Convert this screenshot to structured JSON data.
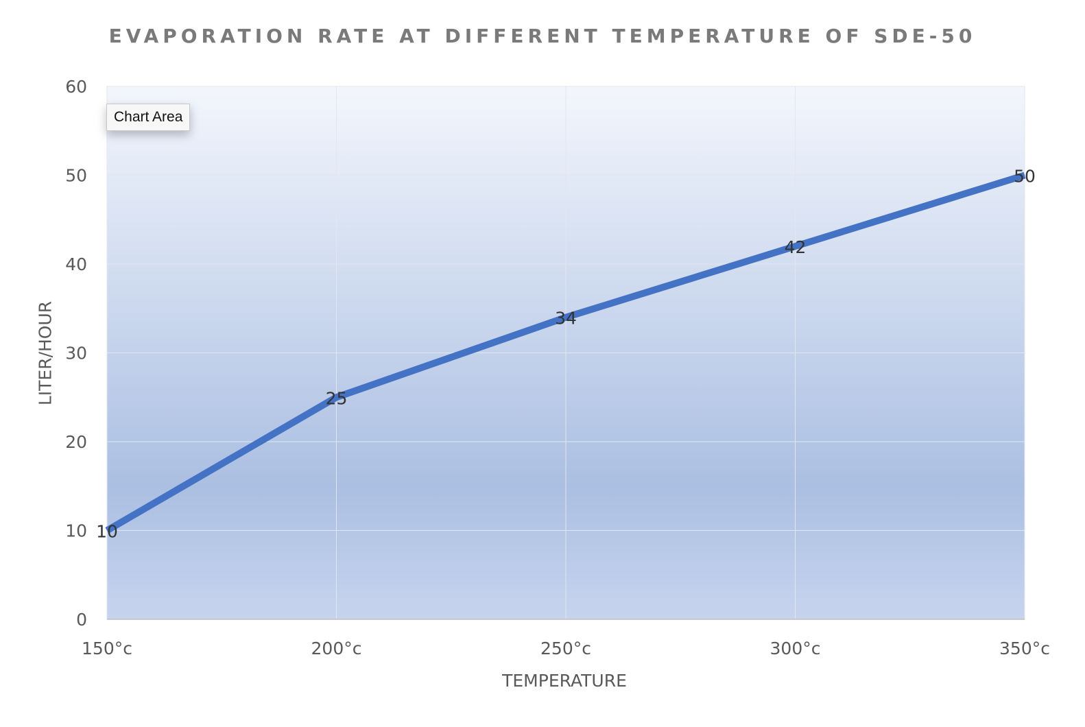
{
  "chart_data": {
    "type": "line",
    "title": "EVAPORATION RATE AT DIFFERENT TEMPERATURE OF SDE-50",
    "xlabel": "TEMPERATURE",
    "ylabel": "LITER/HOUR",
    "categories": [
      "150°c",
      "200°c",
      "250°c",
      "300°c",
      "350°c"
    ],
    "series": [
      {
        "values": [
          10,
          25,
          34,
          42,
          50
        ],
        "color": "#4472c4"
      }
    ],
    "data_labels": [
      "10",
      "25",
      "34",
      "42",
      "50"
    ],
    "ylim": [
      0,
      60
    ],
    "yticks": [
      "0",
      "10",
      "20",
      "30",
      "40",
      "50",
      "60"
    ],
    "grid": true,
    "legend": "none",
    "plot_background": "gradient-blue"
  },
  "tooltip": {
    "label": "Chart Area"
  }
}
